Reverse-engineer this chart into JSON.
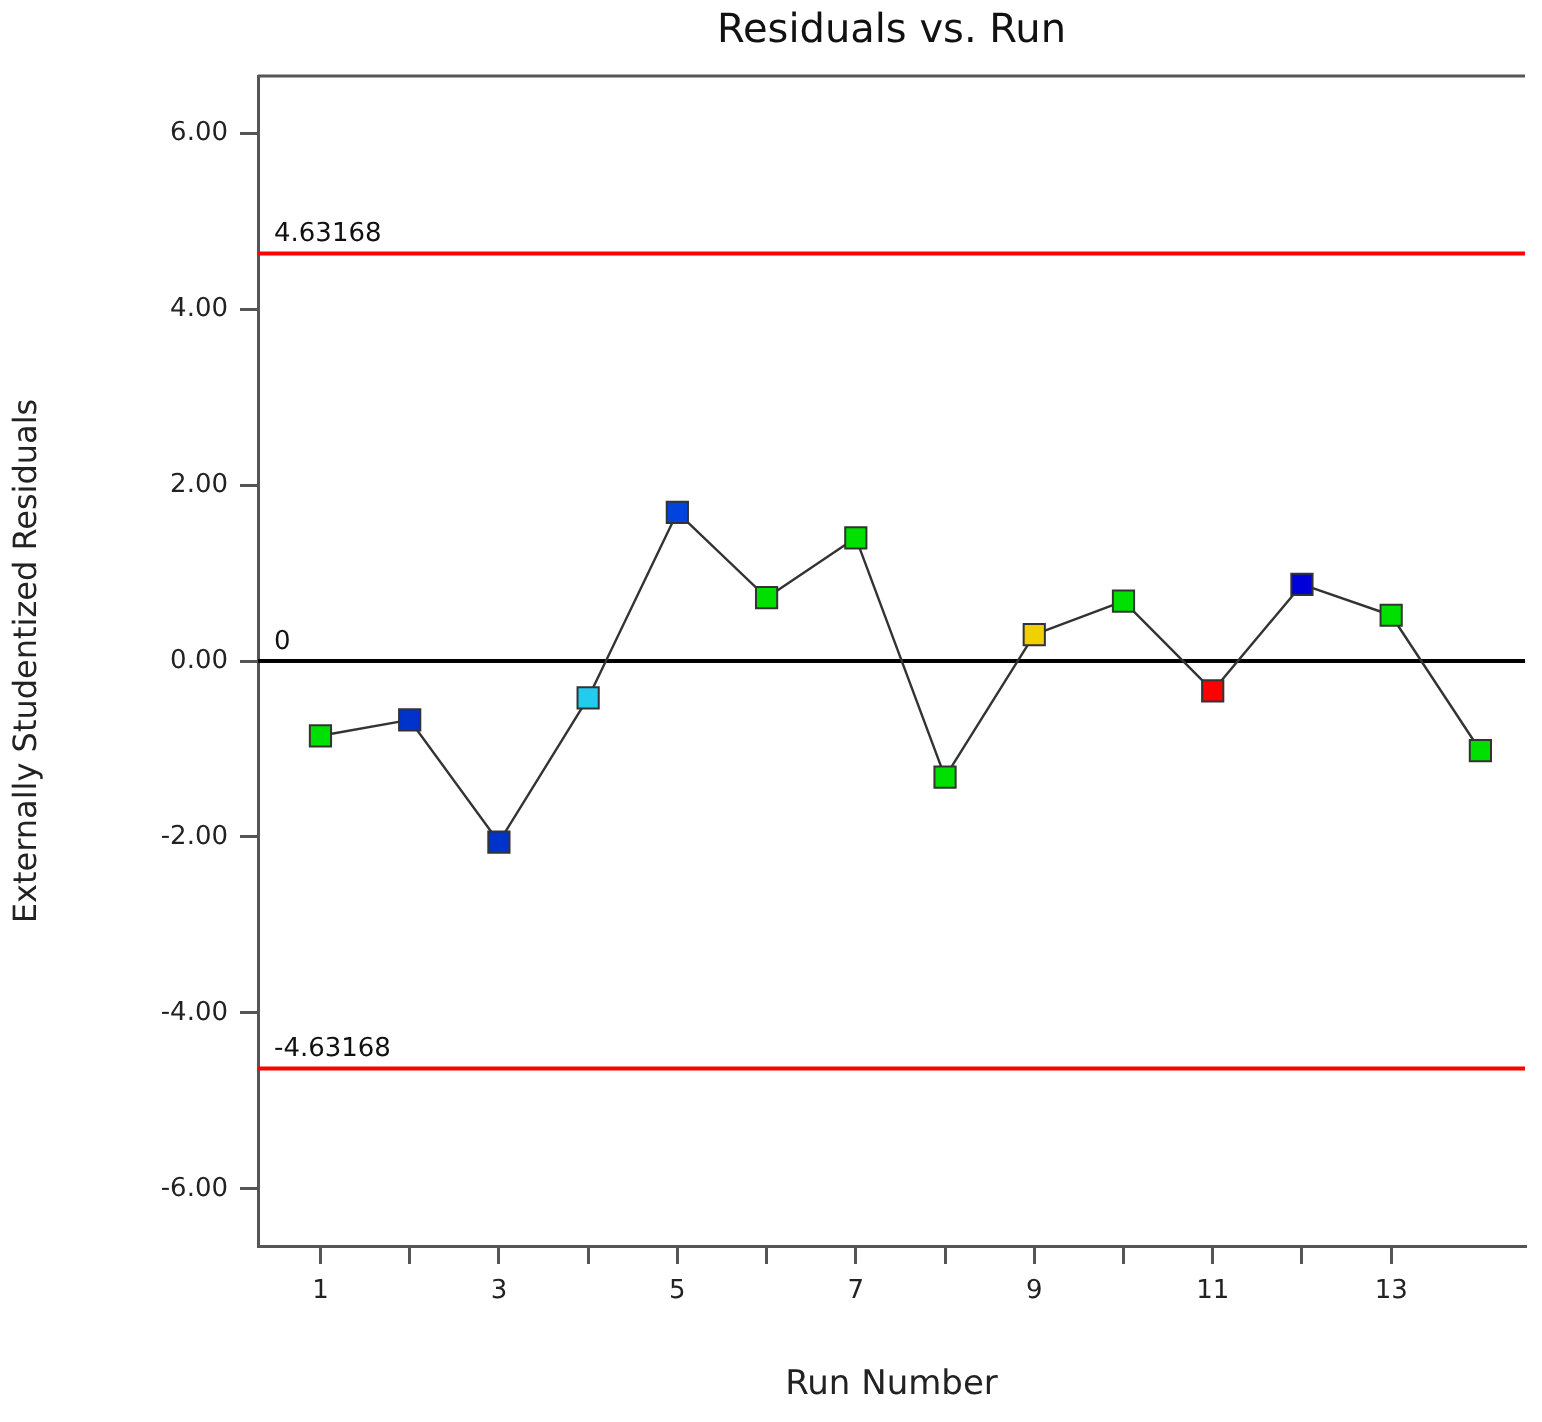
{
  "chart_data": {
    "type": "line",
    "title": "Residuals vs. Run",
    "xlabel": "Run Number",
    "ylabel": "Externally Studentized Residuals",
    "x": [
      1,
      2,
      3,
      4,
      5,
      6,
      7,
      8,
      9,
      10,
      11,
      12,
      13,
      14
    ],
    "values": [
      -0.85,
      -0.67,
      -2.06,
      -0.42,
      1.69,
      0.72,
      1.4,
      -1.32,
      0.3,
      0.68,
      -0.34,
      0.87,
      0.52,
      -1.02
    ],
    "color": "#333333",
    "colors": [
      "#00e000",
      "#0033cc",
      "#0033cc",
      "#22ccee",
      "#0044dd",
      "#00e000",
      "#00e000",
      "#00e000",
      "#f0d000",
      "#00e000",
      "#ff0000",
      "#0000dd",
      "#00e000",
      "#00e000"
    ],
    "marker": "square",
    "line_style": "solid",
    "grid": false,
    "legend": false,
    "xlim": [
      0.3,
      14.5
    ],
    "xticks": [
      1,
      {
        "value": 2,
        "label": null
      },
      3,
      {
        "value": 4,
        "label": null
      },
      5,
      {
        "value": 6,
        "label": null
      },
      7,
      {
        "value": 8,
        "label": null
      },
      9,
      {
        "value": 10,
        "label": null
      },
      11,
      {
        "value": 12,
        "label": null
      },
      13
    ],
    "ylim": [
      -6.65,
      6.65
    ],
    "yticks": [
      {
        "value": -6,
        "label": "-6.00"
      },
      {
        "value": -4,
        "label": "-4.00"
      },
      {
        "value": -2,
        "label": "-2.00"
      },
      {
        "value": 0,
        "label": "0.00"
      },
      {
        "value": 2,
        "label": "2.00"
      },
      {
        "value": 4,
        "label": "4.00"
      },
      {
        "value": 6,
        "label": "6.00"
      }
    ],
    "ref_lines": [
      {
        "axis": "y",
        "value": 4.63168,
        "label": "4.63168",
        "color": "#ff0000"
      },
      {
        "axis": "y",
        "value": -4.63168,
        "label": "-4.63168",
        "color": "#ff0000"
      },
      {
        "axis": "y",
        "value": 0,
        "label": "0",
        "color": "#000000"
      }
    ]
  }
}
